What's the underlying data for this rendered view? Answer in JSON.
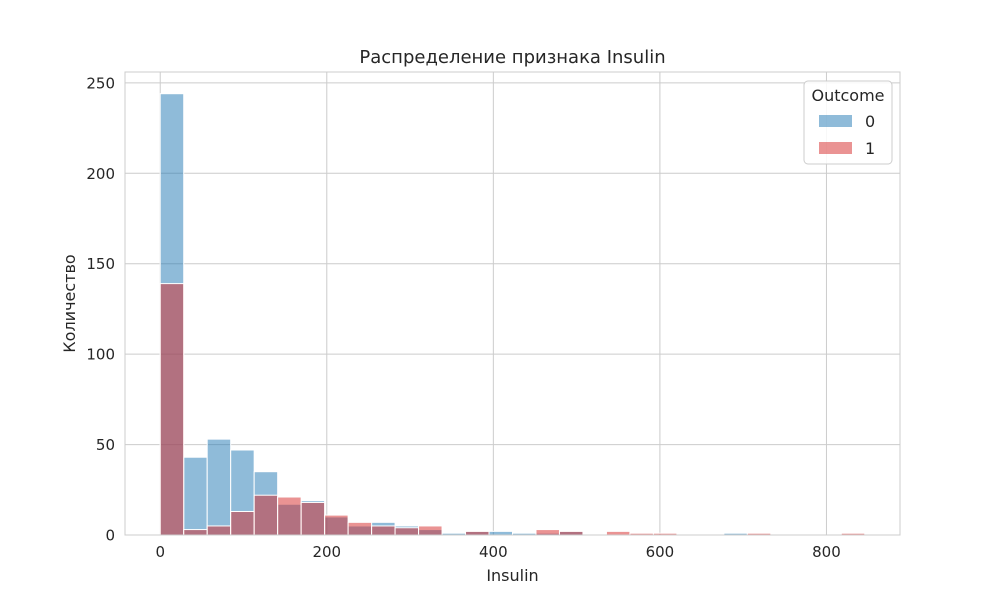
{
  "chart_data": {
    "type": "bar",
    "subtype": "overlapping-histogram",
    "title": "Распределение признака Insulin",
    "xlabel": "Insulin",
    "ylabel": "Количество",
    "xlim": [
      -42.3,
      888.3
    ],
    "ylim": [
      0,
      256
    ],
    "xticks": [
      0,
      200,
      400,
      600,
      800
    ],
    "yticks": [
      0,
      50,
      100,
      150,
      200,
      250
    ],
    "grid": true,
    "legend_placement": "top-right",
    "legend_title": "Outcome",
    "bin_edges": [
      0,
      28.2,
      56.4,
      84.6,
      112.8,
      141,
      169.2,
      197.4,
      225.6,
      253.8,
      282,
      310.2,
      338.4,
      366.6,
      394.8,
      423,
      451.2,
      479.4,
      507.6,
      535.8,
      564,
      592.2,
      620.4,
      648.6,
      676.8,
      705,
      733.2,
      761.4,
      789.6,
      817.8,
      846
    ],
    "series": [
      {
        "name": "0",
        "color": "#1f77b4",
        "values": [
          244,
          43,
          53,
          47,
          35,
          17,
          19,
          10,
          5,
          7,
          5,
          3,
          1,
          2,
          2,
          1,
          1,
          2,
          0,
          0,
          0,
          0,
          0,
          0,
          1,
          0,
          0,
          0,
          0,
          0
        ]
      },
      {
        "name": "1",
        "color": "#d62728",
        "values": [
          139,
          3,
          5,
          13,
          22,
          21,
          18,
          11,
          7,
          5,
          4,
          5,
          0,
          2,
          0,
          0,
          3,
          2,
          0,
          2,
          1,
          1,
          0,
          0,
          0,
          1,
          0,
          0,
          0,
          1
        ]
      }
    ]
  }
}
